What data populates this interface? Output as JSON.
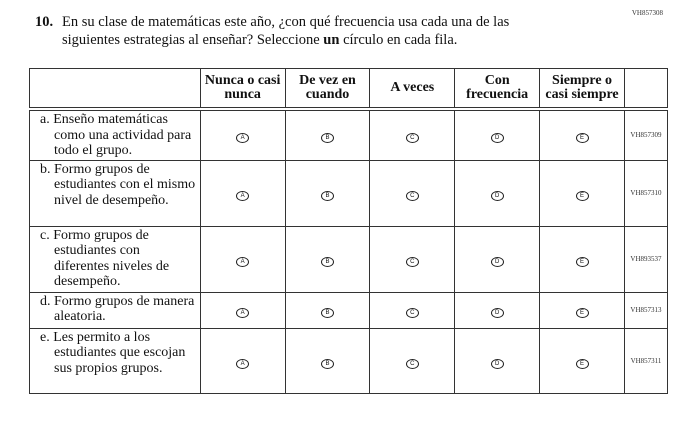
{
  "form_code": "VH857308",
  "question": {
    "number": "10.",
    "text_before": "En su clase de matemáticas este año, ¿con qué frecuencia usa cada una de las siguientes estrategias al enseñar? Seleccione ",
    "text_bold": "un",
    "text_after": " círculo en cada fila."
  },
  "columns": [
    "Nunca o casi nunca",
    "De vez en cuando",
    "A veces",
    "Con frecuencia",
    "Siempre o casi siempre"
  ],
  "options": [
    "A",
    "B",
    "C",
    "D",
    "E"
  ],
  "rows": [
    {
      "label": "a. Enseño matemáticas como una actividad para todo el grupo.",
      "code": "VH857309"
    },
    {
      "label": "b. Formo grupos de estudiantes con el mismo nivel de desempeño.",
      "code": "VH857310"
    },
    {
      "label": "c. Formo grupos de estudiantes con diferentes niveles de desempeño.",
      "code": "VH893537"
    },
    {
      "label": "d. Formo grupos de manera aleatoria.",
      "code": "VH857313"
    },
    {
      "label": "e. Les permito a los estudiantes que escojan sus propios grupos.",
      "code": "VH857311"
    }
  ]
}
